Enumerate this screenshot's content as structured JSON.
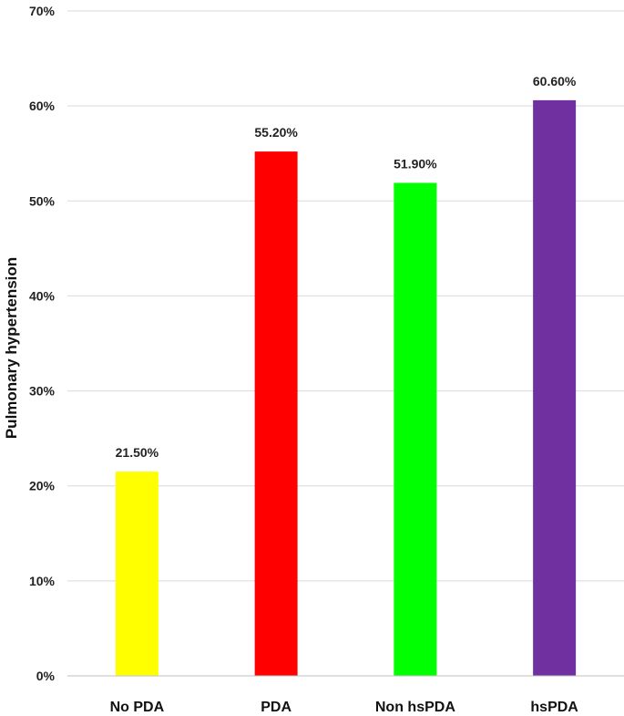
{
  "chart_data": {
    "type": "bar",
    "title": "",
    "xlabel": "",
    "ylabel": "Pulmonary hypertension",
    "categories": [
      "No PDA",
      "PDA",
      "Non hsPDA",
      "hsPDA"
    ],
    "values": [
      21.5,
      55.2,
      51.9,
      60.6
    ],
    "data_labels": [
      "21.50%",
      "55.20%",
      "51.90%",
      "60.60%"
    ],
    "colors": [
      "#ffff00",
      "#ff0000",
      "#00ff00",
      "#7030a0"
    ],
    "ylim": [
      0,
      70
    ],
    "yticks": [
      0,
      10,
      20,
      30,
      40,
      50,
      60,
      70
    ],
    "ytick_labels": [
      "0%",
      "10%",
      "20%",
      "30%",
      "40%",
      "50%",
      "60%",
      "70%"
    ],
    "grid": true,
    "legend": "none"
  }
}
